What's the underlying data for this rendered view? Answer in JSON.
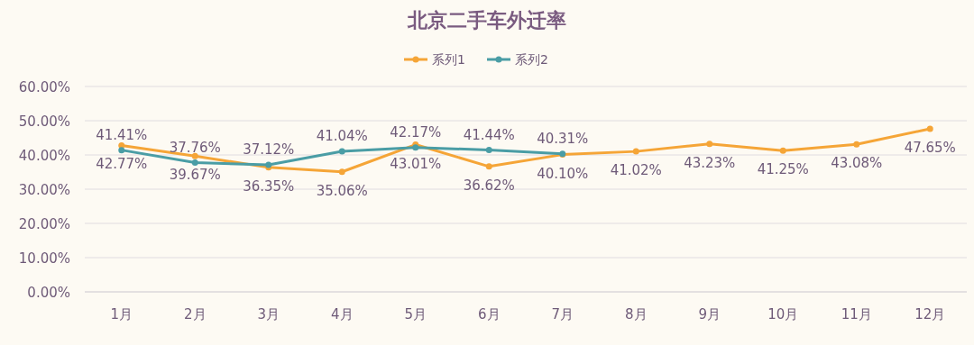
{
  "chart_data": {
    "type": "line",
    "title": "北京二手车外迁率",
    "categories": [
      "1月",
      "2月",
      "3月",
      "4月",
      "5月",
      "6月",
      "7月",
      "8月",
      "9月",
      "10月",
      "11月",
      "12月"
    ],
    "series": [
      {
        "name": "系列1",
        "color": "#f5a537",
        "values": [
          42.77,
          39.67,
          36.35,
          35.06,
          43.01,
          36.62,
          40.1,
          41.02,
          43.23,
          41.25,
          43.08,
          47.65
        ],
        "value_labels": [
          "42.77%",
          "39.67%",
          "36.35%",
          "35.06%",
          "43.01%",
          "36.62%",
          "40.10%",
          "41.02%",
          "43.23%",
          "41.25%",
          "43.08%",
          "47.65%"
        ]
      },
      {
        "name": "系列2",
        "color": "#4a9da5",
        "values": [
          41.41,
          37.76,
          37.12,
          41.04,
          42.17,
          41.44,
          40.31,
          null,
          null,
          null,
          null,
          null
        ],
        "value_labels": [
          "41.41%",
          "37.76%",
          "37.12%",
          "41.04%",
          "42.17%",
          "41.44%",
          "40.31%",
          null,
          null,
          null,
          null,
          null
        ]
      }
    ],
    "ylim": [
      0,
      60
    ],
    "yticks": [
      {
        "value": 0,
        "label": "0.00%"
      },
      {
        "value": 10,
        "label": "10.00%"
      },
      {
        "value": 20,
        "label": "20.00%"
      },
      {
        "value": 30,
        "label": "30.00%"
      },
      {
        "value": 40,
        "label": "40.00%"
      },
      {
        "value": 50,
        "label": "50.00%"
      },
      {
        "value": 60,
        "label": "60.00%"
      }
    ],
    "grid": "y",
    "legend": "top",
    "marker": "circle",
    "line_style": "solid"
  }
}
